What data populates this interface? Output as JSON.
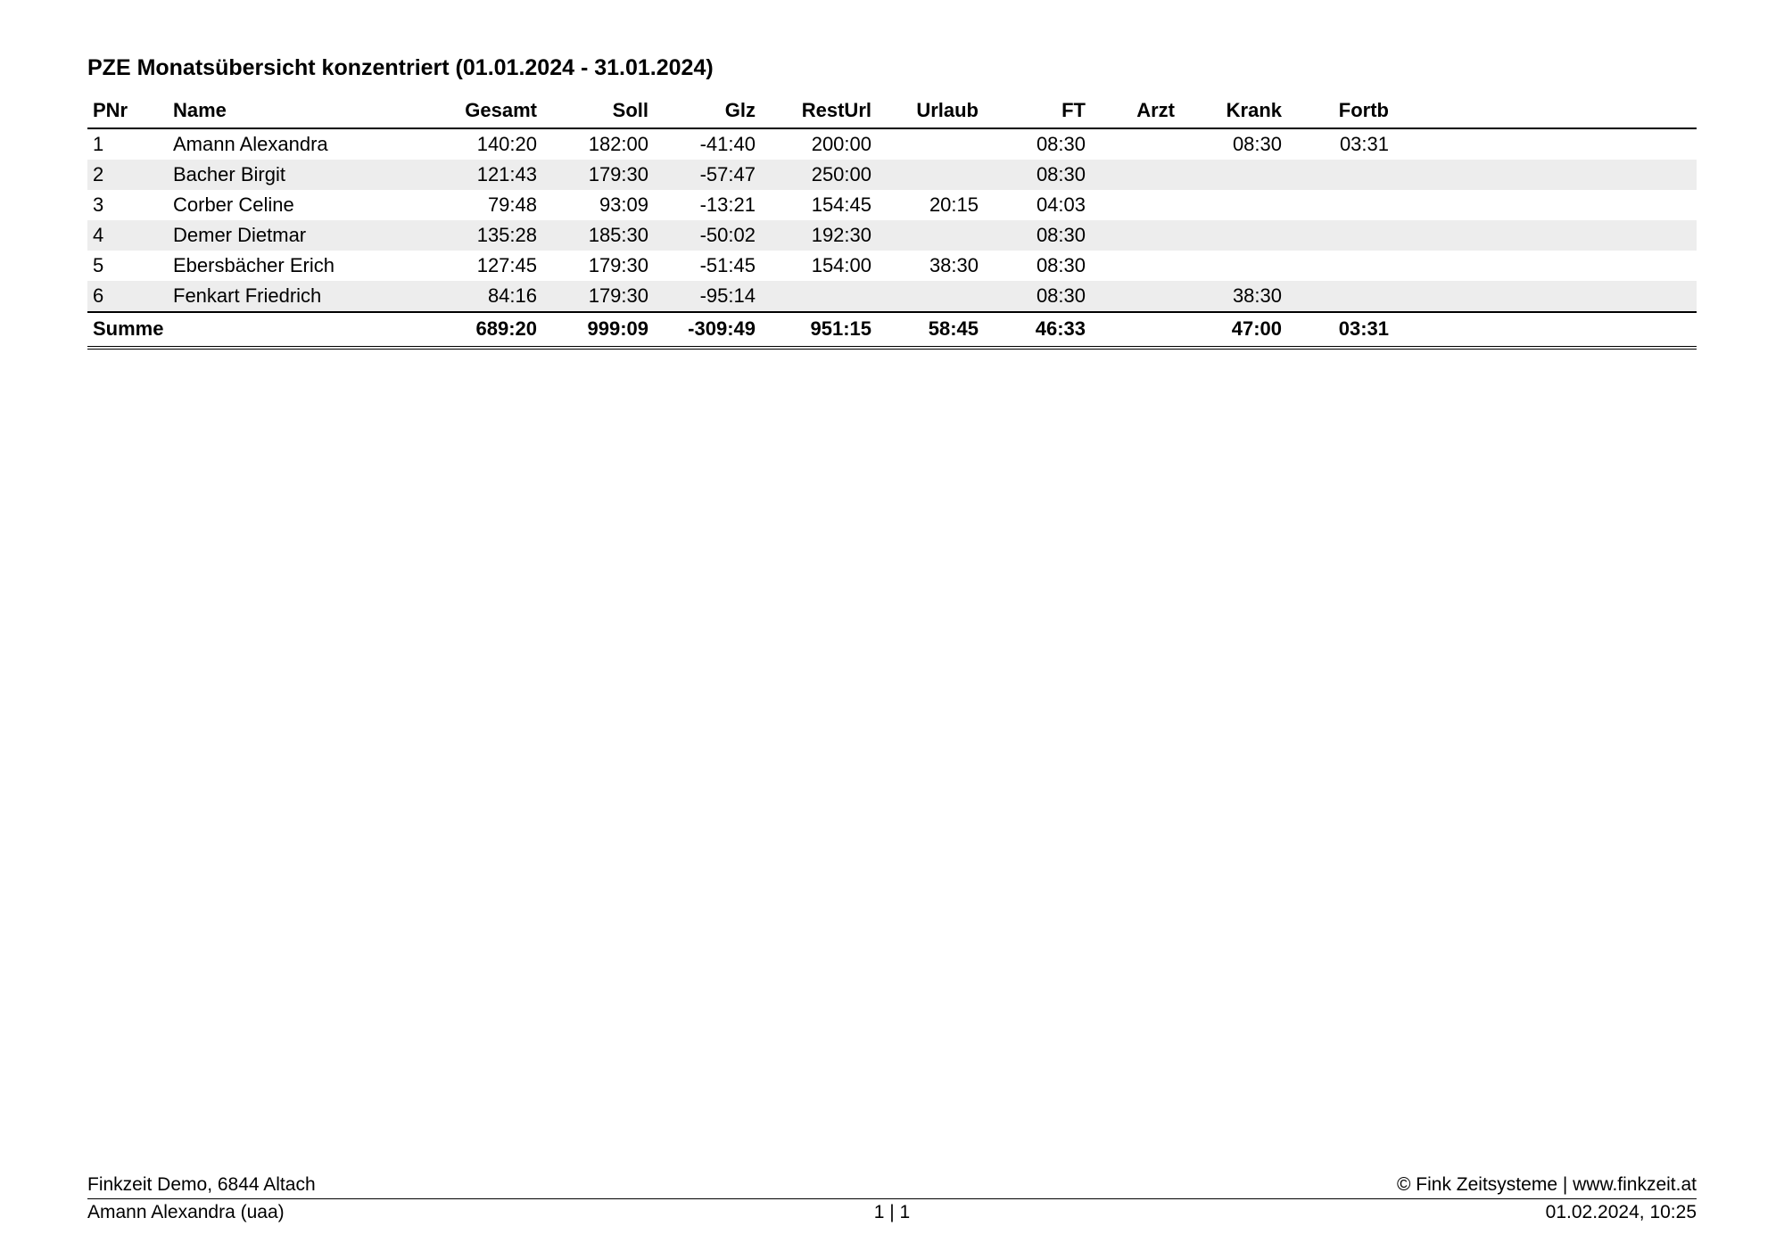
{
  "title": "PZE Monatsübersicht konzentriert (01.01.2024 - 31.01.2024)",
  "columns": [
    "PNr",
    "Name",
    "Gesamt",
    "Soll",
    "Glz",
    "RestUrl",
    "Urlaub",
    "FT",
    "Arzt",
    "Krank",
    "Fortb"
  ],
  "rows": [
    {
      "pnr": "1",
      "name": "Amann Alexandra",
      "gesamt": "140:20",
      "soll": "182:00",
      "glz": "-41:40",
      "resturl": "200:00",
      "urlaub": "",
      "ft": "08:30",
      "arzt": "",
      "krank": "08:30",
      "fortb": "03:31"
    },
    {
      "pnr": "2",
      "name": "Bacher Birgit",
      "gesamt": "121:43",
      "soll": "179:30",
      "glz": "-57:47",
      "resturl": "250:00",
      "urlaub": "",
      "ft": "08:30",
      "arzt": "",
      "krank": "",
      "fortb": ""
    },
    {
      "pnr": "3",
      "name": "Corber Celine",
      "gesamt": "79:48",
      "soll": "93:09",
      "glz": "-13:21",
      "resturl": "154:45",
      "urlaub": "20:15",
      "ft": "04:03",
      "arzt": "",
      "krank": "",
      "fortb": ""
    },
    {
      "pnr": "4",
      "name": "Demer Dietmar",
      "gesamt": "135:28",
      "soll": "185:30",
      "glz": "-50:02",
      "resturl": "192:30",
      "urlaub": "",
      "ft": "08:30",
      "arzt": "",
      "krank": "",
      "fortb": ""
    },
    {
      "pnr": "5",
      "name": "Ebersbächer Erich",
      "gesamt": "127:45",
      "soll": "179:30",
      "glz": "-51:45",
      "resturl": "154:00",
      "urlaub": "38:30",
      "ft": "08:30",
      "arzt": "",
      "krank": "",
      "fortb": ""
    },
    {
      "pnr": "6",
      "name": "Fenkart Friedrich",
      "gesamt": "84:16",
      "soll": "179:30",
      "glz": "-95:14",
      "resturl": "",
      "urlaub": "",
      "ft": "08:30",
      "arzt": "",
      "krank": "38:30",
      "fortb": ""
    }
  ],
  "sum": {
    "label": "Summe",
    "gesamt": "689:20",
    "soll": "999:09",
    "glz": "-309:49",
    "resturl": "951:15",
    "urlaub": "58:45",
    "ft": "46:33",
    "arzt": "",
    "krank": "47:00",
    "fortb": "03:31"
  },
  "footer": {
    "leftTop": "Finkzeit Demo, 6844 Altach",
    "rightTop": "© Fink Zeitsysteme | www.finkzeit.at",
    "leftBottom": "Amann Alexandra (uaa)",
    "center": "1  |  1",
    "rightBottom": "01.02.2024, 10:25"
  },
  "style": {
    "background_color": "#ffffff",
    "text_color": "#000000",
    "row_alt_color": "#ededed",
    "border_color": "#000000",
    "title_fontsize": 25,
    "body_fontsize": 22,
    "footer_fontsize": 21,
    "font_family": "Arial"
  }
}
